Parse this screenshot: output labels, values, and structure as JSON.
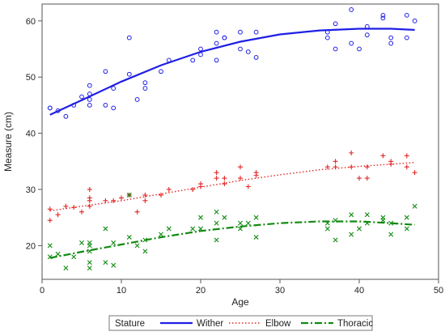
{
  "chart_data": {
    "type": "scatter",
    "title": "",
    "xlabel": "Age",
    "ylabel": "Measure (cm)",
    "xlim": [
      0,
      50
    ],
    "ylim": [
      14,
      63
    ],
    "xticks": [
      0,
      10,
      20,
      30,
      40,
      50
    ],
    "yticks": [
      20,
      30,
      40,
      50,
      60
    ],
    "grid": false,
    "legend": {
      "title": "Stature",
      "placement": "bottom",
      "items": [
        "Wither",
        "Elbow",
        "Thoracic"
      ]
    },
    "series": [
      {
        "name": "Wither",
        "color": "#1f1fe6",
        "marker": "circle",
        "line_style": "solid",
        "points": [
          [
            1,
            44.5
          ],
          [
            1,
            44.5
          ],
          [
            2,
            44
          ],
          [
            3,
            43
          ],
          [
            4,
            45
          ],
          [
            5,
            46.5
          ],
          [
            6,
            45
          ],
          [
            6,
            46
          ],
          [
            6,
            47
          ],
          [
            6,
            48.5
          ],
          [
            8,
            45
          ],
          [
            8,
            51
          ],
          [
            9,
            44.5
          ],
          [
            9,
            48
          ],
          [
            11,
            50.5
          ],
          [
            11,
            57
          ],
          [
            12,
            46
          ],
          [
            13,
            48
          ],
          [
            13,
            49
          ],
          [
            15,
            51
          ],
          [
            16,
            53
          ],
          [
            19,
            53
          ],
          [
            20,
            54
          ],
          [
            20,
            55
          ],
          [
            22,
            53
          ],
          [
            22,
            56
          ],
          [
            22,
            58
          ],
          [
            23,
            57
          ],
          [
            23,
            57
          ],
          [
            25,
            55
          ],
          [
            25,
            58
          ],
          [
            26,
            54.5
          ],
          [
            27,
            53.5
          ],
          [
            27,
            58
          ],
          [
            36,
            57
          ],
          [
            36,
            58
          ],
          [
            37,
            55
          ],
          [
            37,
            59.5
          ],
          [
            39,
            56
          ],
          [
            39,
            62
          ],
          [
            40,
            55
          ],
          [
            41,
            57.5
          ],
          [
            41,
            59
          ],
          [
            43,
            60.5
          ],
          [
            43,
            61
          ],
          [
            44,
            56
          ],
          [
            44,
            57
          ],
          [
            46,
            57
          ],
          [
            46,
            61
          ],
          [
            47,
            60
          ]
        ],
        "fit": [
          [
            1,
            43.3
          ],
          [
            5,
            45.9
          ],
          [
            10,
            49.2
          ],
          [
            15,
            52.1
          ],
          [
            20,
            54.5
          ],
          [
            25,
            56.3
          ],
          [
            30,
            57.6
          ],
          [
            35,
            58.3
          ],
          [
            40,
            58.6
          ],
          [
            44,
            58.6
          ],
          [
            47,
            58.4
          ]
        ]
      },
      {
        "name": "Elbow",
        "color": "#e32626",
        "marker": "plus",
        "line_style": "dotted",
        "points": [
          [
            1,
            24.5
          ],
          [
            1,
            26.5
          ],
          [
            2,
            25.5
          ],
          [
            3,
            27
          ],
          [
            4,
            26.8
          ],
          [
            5,
            26
          ],
          [
            6,
            27
          ],
          [
            6,
            28
          ],
          [
            6,
            28.5
          ],
          [
            6,
            30
          ],
          [
            8,
            28
          ],
          [
            9,
            28
          ],
          [
            10,
            28.5
          ],
          [
            11,
            29
          ],
          [
            12,
            26
          ],
          [
            13,
            28
          ],
          [
            13,
            29
          ],
          [
            15,
            29
          ],
          [
            16,
            30
          ],
          [
            19,
            30
          ],
          [
            20,
            30.5
          ],
          [
            20,
            31
          ],
          [
            22,
            32
          ],
          [
            22,
            33
          ],
          [
            23,
            31
          ],
          [
            23,
            32
          ],
          [
            25,
            32
          ],
          [
            25,
            34
          ],
          [
            26,
            30.5
          ],
          [
            27,
            32.5
          ],
          [
            27,
            33
          ],
          [
            36,
            34
          ],
          [
            37,
            34
          ],
          [
            37,
            35
          ],
          [
            39,
            34
          ],
          [
            39,
            36.5
          ],
          [
            40,
            32
          ],
          [
            41,
            32
          ],
          [
            41,
            34
          ],
          [
            43,
            36
          ],
          [
            44,
            34.5
          ],
          [
            44,
            35
          ],
          [
            46,
            34
          ],
          [
            46,
            36
          ],
          [
            47,
            33
          ]
        ],
        "fit": [
          [
            1,
            26.2
          ],
          [
            5,
            27.0
          ],
          [
            10,
            28.0
          ],
          [
            15,
            29.2
          ],
          [
            20,
            30.4
          ],
          [
            25,
            31.6
          ],
          [
            30,
            32.6
          ],
          [
            35,
            33.5
          ],
          [
            40,
            34.1
          ],
          [
            44,
            34.5
          ],
          [
            47,
            34.8
          ]
        ]
      },
      {
        "name": "Thoracic",
        "color": "#108a10",
        "marker": "x",
        "line_style": "dashdot",
        "points": [
          [
            1,
            18
          ],
          [
            1,
            20
          ],
          [
            2,
            18.5
          ],
          [
            3,
            16
          ],
          [
            4,
            18
          ],
          [
            5,
            20.5
          ],
          [
            6,
            16
          ],
          [
            6,
            17
          ],
          [
            6,
            19
          ],
          [
            6,
            20
          ],
          [
            6,
            20.5
          ],
          [
            8,
            17
          ],
          [
            8,
            23
          ],
          [
            9,
            16.5
          ],
          [
            9,
            20.5
          ],
          [
            11,
            21.5
          ],
          [
            11,
            29
          ],
          [
            12,
            20
          ],
          [
            13,
            19
          ],
          [
            13,
            21
          ],
          [
            15,
            22
          ],
          [
            16,
            23
          ],
          [
            19,
            23
          ],
          [
            20,
            23
          ],
          [
            20,
            25
          ],
          [
            22,
            21
          ],
          [
            22,
            24
          ],
          [
            22,
            26
          ],
          [
            23,
            25
          ],
          [
            25,
            23
          ],
          [
            25,
            24
          ],
          [
            26,
            24
          ],
          [
            27,
            21.5
          ],
          [
            27,
            25
          ],
          [
            36,
            23
          ],
          [
            36,
            24
          ],
          [
            37,
            21
          ],
          [
            37,
            24.5
          ],
          [
            39,
            22
          ],
          [
            39,
            25.5
          ],
          [
            40,
            23
          ],
          [
            41,
            24
          ],
          [
            41,
            25.5
          ],
          [
            43,
            24.5
          ],
          [
            43,
            25
          ],
          [
            44,
            22
          ],
          [
            44,
            24
          ],
          [
            46,
            23
          ],
          [
            46,
            25
          ],
          [
            47,
            27
          ]
        ],
        "fit": [
          [
            1,
            17.8
          ],
          [
            5,
            18.9
          ],
          [
            10,
            20.2
          ],
          [
            15,
            21.5
          ],
          [
            20,
            22.6
          ],
          [
            25,
            23.4
          ],
          [
            30,
            24.0
          ],
          [
            35,
            24.3
          ],
          [
            40,
            24.3
          ],
          [
            44,
            24.0
          ],
          [
            47,
            23.7
          ]
        ]
      }
    ]
  }
}
